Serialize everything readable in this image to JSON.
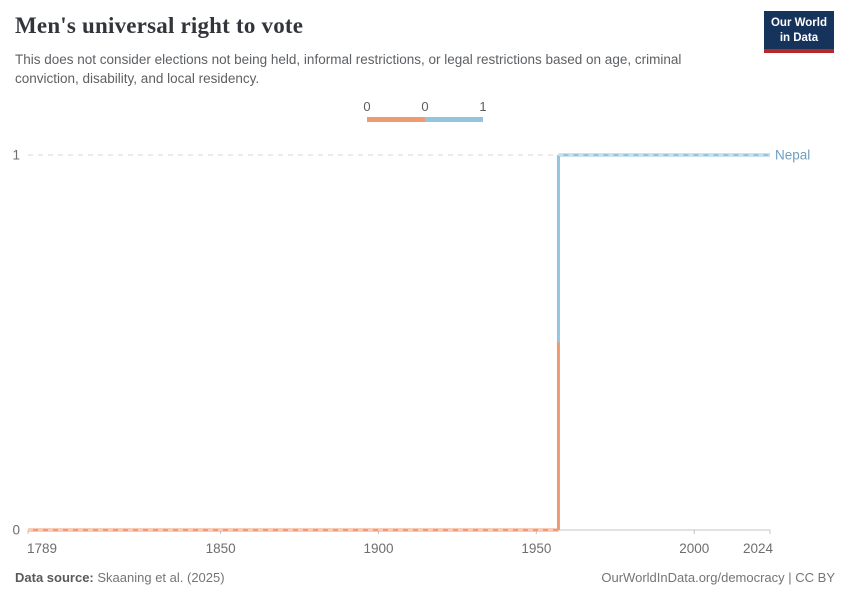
{
  "header": {
    "title": "Men's universal right to vote",
    "subtitle": "This does not consider elections not being held, informal restrictions, or legal restrictions based on age, criminal conviction, disability, and local residency."
  },
  "logo": {
    "line1": "Our World",
    "line2": "in Data"
  },
  "legend": {
    "labels": [
      "0",
      "0",
      "1"
    ]
  },
  "chart_data": {
    "type": "line",
    "step": true,
    "title": "Men's universal right to vote",
    "xlabel": "",
    "ylabel": "",
    "xlim": [
      1789,
      2024
    ],
    "ylim": [
      0,
      1
    ],
    "xticks": [
      1789,
      1850,
      1900,
      1950,
      2000,
      2024
    ],
    "yticks": [
      0,
      1
    ],
    "grid": "dashed-horizontal",
    "legend_position": "top-center",
    "series": [
      {
        "name": "Nepal",
        "points": [
          {
            "x": 1789,
            "y": 0
          },
          {
            "x": 1957,
            "y": 0
          },
          {
            "x": 1957,
            "y": 1
          },
          {
            "x": 2024,
            "y": 1
          }
        ]
      }
    ]
  },
  "colors": {
    "value0": "#F09A70",
    "value1": "#95C4DE",
    "entity_label": "#6D9EC1",
    "logo_bg": "#16335C",
    "logo_red": "#B6292B",
    "axis": "#C4C4C4",
    "gridline": "#D7D7D7",
    "tick_text": "#6E6E6E"
  },
  "footer": {
    "source_label": "Data source:",
    "source_value": "Skaaning et al. (2025)",
    "credit": "OurWorldInData.org/democracy | CC BY"
  }
}
